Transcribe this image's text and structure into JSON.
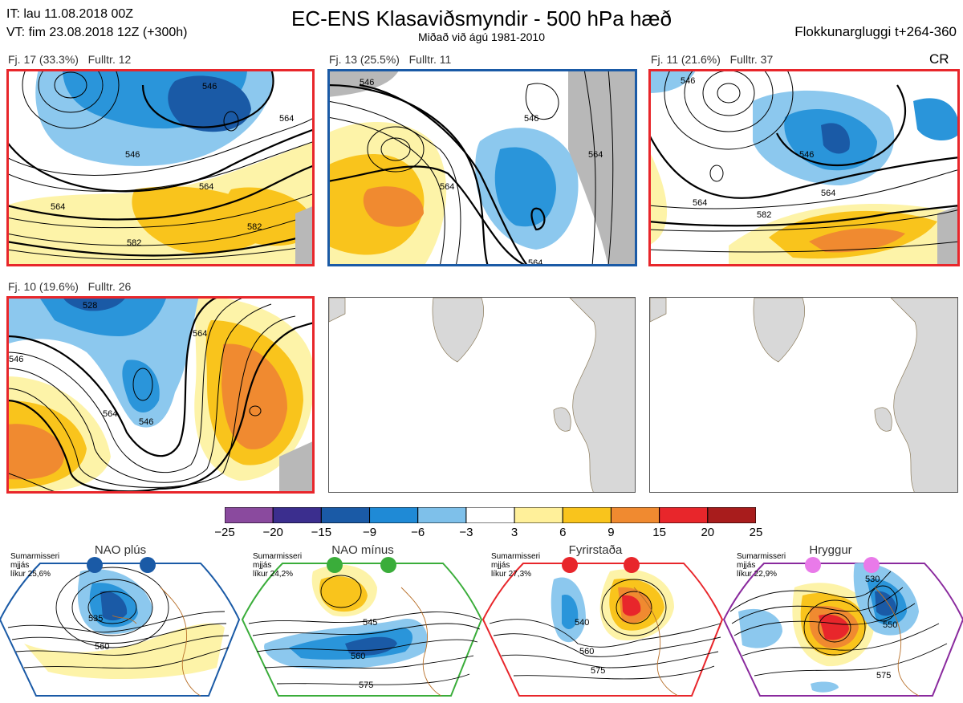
{
  "header": {
    "it_line": "IT: lau 11.08.2018 00Z",
    "vt_line": "VT: fim 23.08.2018 12Z  (+300h)",
    "title": "EC-ENS Klasaviðsmyndir - 500 hPa hæð",
    "subtitle": "Miðað við ágú 1981-2010",
    "window": "Flokkunargluggi t+264-360",
    "cr": "CR"
  },
  "panels": [
    {
      "fj": "Fj. 17 (33.3%)",
      "fulltr": "Fulltr. 12",
      "border": "#e8262b",
      "contours": [
        "546",
        "546",
        "564",
        "564",
        "582",
        "546",
        "564"
      ]
    },
    {
      "fj": "Fj. 13 (25.5%)",
      "fulltr": "Fulltr. 11",
      "border": "#1a5aa6",
      "contours": [
        "546",
        "546",
        "564",
        "564",
        "564"
      ]
    },
    {
      "fj": "Fj. 11 (21.6%)",
      "fulltr": "Fulltr. 37",
      "border": "#e8262b",
      "contours": [
        "546",
        "546",
        "564",
        "582",
        "564"
      ]
    },
    {
      "fj": "Fj. 10 (19.6%)",
      "fulltr": "Fulltr. 26",
      "border": "#e8262b",
      "contours": [
        "546",
        "546",
        "564",
        "564",
        "528"
      ]
    }
  ],
  "colorbar": {
    "ticks": [
      "−25",
      "−20",
      "−15",
      "−9",
      "−6",
      "−3",
      "3",
      "6",
      "9",
      "15",
      "20",
      "25"
    ],
    "colors": [
      "#8a4a9e",
      "#3b2e8e",
      "#1a5aa6",
      "#1f8ad6",
      "#7ec0ea",
      "#ffffff",
      "#fff09a",
      "#f9c41c",
      "#f08a30",
      "#e8262b",
      "#a81c1c"
    ]
  },
  "regimes": [
    {
      "name": "NAO plús",
      "note1": "Sumarmisseri",
      "note2": "mjjás",
      "note3": "líkur 25,6%",
      "color": "#1a5aa6",
      "dot": "#1a5aa6",
      "labels": [
        "535",
        "560"
      ]
    },
    {
      "name": "NAO mínus",
      "note1": "Sumarmisseri",
      "note2": "mjjás",
      "note3": "líkur 24,2%",
      "color": "#3aad3a",
      "dot": "#3aad3a",
      "labels": [
        "545",
        "560",
        "575"
      ]
    },
    {
      "name": "Fyrirstaða",
      "note1": "Sumarmisseri",
      "note2": "mjjás",
      "note3": "líkur 27,3%",
      "color": "#e8262b",
      "dot": "#e8262b",
      "labels": [
        "540",
        "560",
        "575"
      ]
    },
    {
      "name": "Hryggur",
      "note1": "Sumarmisseri",
      "note2": "mjjás",
      "note3": "líkur 22,9%",
      "color": "#8a2a9e",
      "dot": "#e97ae9",
      "labels": [
        "530",
        "550",
        "575"
      ]
    }
  ]
}
